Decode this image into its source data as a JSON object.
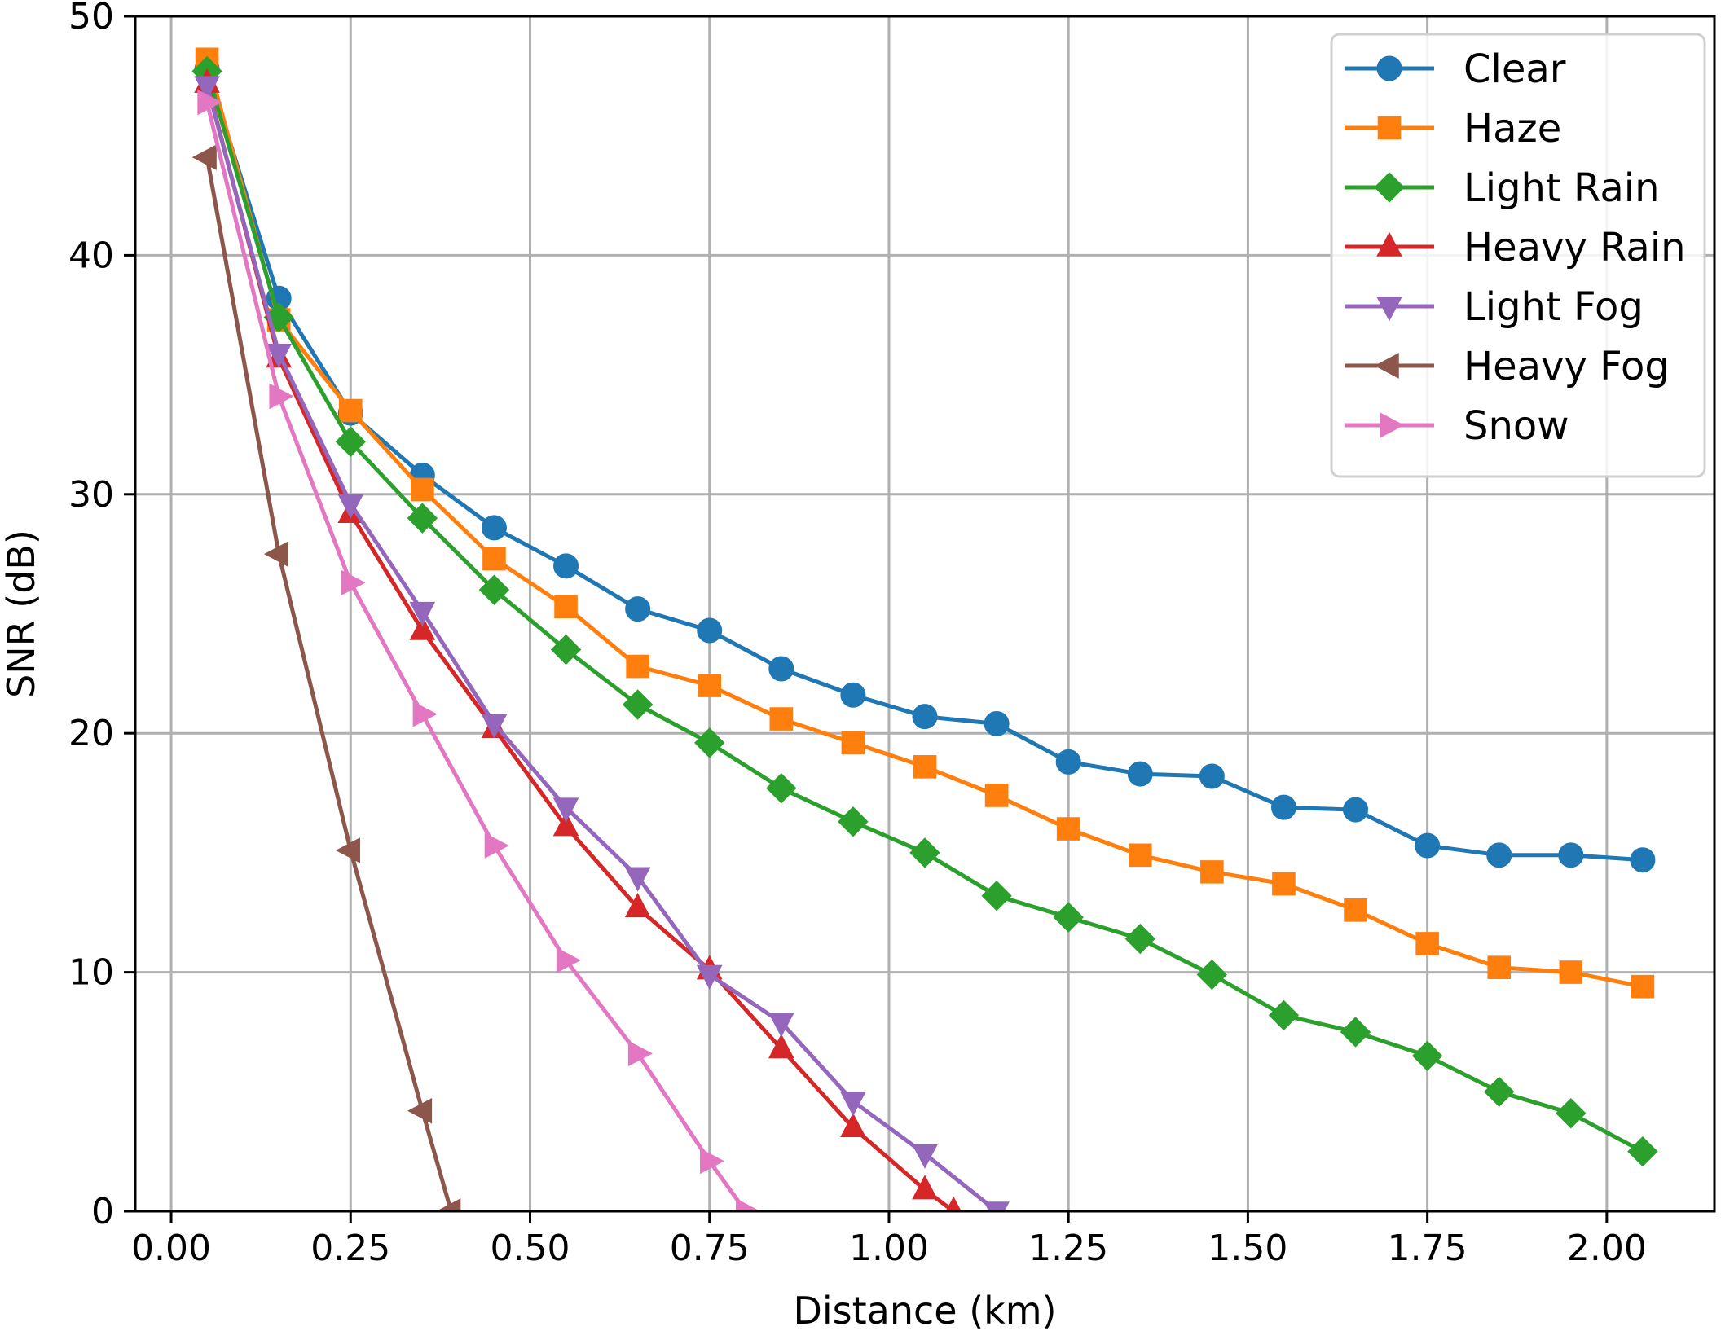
{
  "chart_data": {
    "type": "line",
    "title": "",
    "xlabel": "Distance (km)",
    "ylabel": "SNR (dB)",
    "xlim": [
      -0.05,
      2.15
    ],
    "ylim": [
      0,
      50
    ],
    "xticks": [
      0.0,
      0.25,
      0.5,
      0.75,
      1.0,
      1.25,
      1.5,
      1.75,
      2.0
    ],
    "xtick_labels": [
      "0.00",
      "0.25",
      "0.50",
      "0.75",
      "1.00",
      "1.25",
      "1.50",
      "1.75",
      "2.00"
    ],
    "yticks": [
      0,
      10,
      20,
      30,
      40,
      50
    ],
    "ytick_labels": [
      "0",
      "10",
      "20",
      "30",
      "40",
      "50"
    ],
    "grid": true,
    "legend_position": "top-right",
    "series": [
      {
        "name": "Clear",
        "color": "#1f77b4",
        "marker": "circle",
        "x": [
          0.05,
          0.15,
          0.25,
          0.35,
          0.45,
          0.55,
          0.65,
          0.75,
          0.85,
          0.95,
          1.05,
          1.15,
          1.25,
          1.35,
          1.45,
          1.55,
          1.65,
          1.75,
          1.85,
          1.95,
          2.05
        ],
        "y": [
          47.8,
          38.2,
          33.4,
          30.8,
          28.6,
          27.0,
          25.2,
          24.3,
          22.7,
          21.6,
          20.7,
          20.4,
          18.8,
          18.3,
          18.2,
          16.9,
          16.8,
          15.3,
          14.9,
          14.9,
          14.7
        ]
      },
      {
        "name": "Haze",
        "color": "#ff7f0e",
        "marker": "square",
        "x": [
          0.05,
          0.15,
          0.25,
          0.35,
          0.45,
          0.55,
          0.65,
          0.75,
          0.85,
          0.95,
          1.05,
          1.15,
          1.25,
          1.35,
          1.45,
          1.55,
          1.65,
          1.75,
          1.85,
          1.95,
          2.05
        ],
        "y": [
          48.2,
          37.3,
          33.5,
          30.2,
          27.3,
          25.3,
          22.8,
          22.0,
          20.6,
          19.6,
          18.6,
          17.4,
          16.0,
          14.9,
          14.2,
          13.7,
          12.6,
          11.2,
          10.2,
          10.0,
          9.4
        ]
      },
      {
        "name": "Light Rain",
        "color": "#2ca02c",
        "marker": "diamond",
        "x": [
          0.05,
          0.15,
          0.25,
          0.35,
          0.45,
          0.55,
          0.65,
          0.75,
          0.85,
          0.95,
          1.05,
          1.15,
          1.25,
          1.35,
          1.45,
          1.55,
          1.65,
          1.75,
          1.85,
          1.95,
          2.05
        ],
        "y": [
          47.7,
          37.4,
          32.2,
          29.0,
          26.0,
          23.5,
          21.2,
          19.6,
          17.7,
          16.3,
          15.0,
          13.2,
          12.3,
          11.4,
          9.9,
          8.2,
          7.5,
          6.5,
          5.0,
          4.1,
          2.5
        ]
      },
      {
        "name": "Heavy Rain",
        "color": "#d62728",
        "marker": "triangle-up",
        "x": [
          0.05,
          0.15,
          0.25,
          0.35,
          0.45,
          0.55,
          0.65,
          0.75,
          0.85,
          0.95,
          1.05,
          1.09
        ],
        "y": [
          47.2,
          35.7,
          29.2,
          24.3,
          20.2,
          16.1,
          12.7,
          10.1,
          6.8,
          3.5,
          0.9,
          0.0
        ]
      },
      {
        "name": "Light Fog",
        "color": "#9467bd",
        "marker": "triangle-down",
        "x": [
          0.05,
          0.15,
          0.25,
          0.35,
          0.45,
          0.55,
          0.65,
          0.75,
          0.85,
          0.95,
          1.05,
          1.15
        ],
        "y": [
          47.1,
          35.9,
          29.6,
          25.1,
          20.4,
          16.9,
          14.0,
          9.9,
          7.9,
          4.6,
          2.4,
          0.0
        ]
      },
      {
        "name": "Heavy Fog",
        "color": "#8c564b",
        "marker": "triangle-left",
        "x": [
          0.05,
          0.15,
          0.25,
          0.35,
          0.39
        ],
        "y": [
          44.1,
          27.5,
          15.1,
          4.2,
          0.0
        ]
      },
      {
        "name": "Snow",
        "color": "#e377c2",
        "marker": "triangle-right",
        "x": [
          0.05,
          0.15,
          0.25,
          0.35,
          0.45,
          0.55,
          0.65,
          0.75,
          0.8
        ],
        "y": [
          46.4,
          34.1,
          26.3,
          20.8,
          15.3,
          10.5,
          6.6,
          2.1,
          0.0
        ]
      }
    ]
  }
}
